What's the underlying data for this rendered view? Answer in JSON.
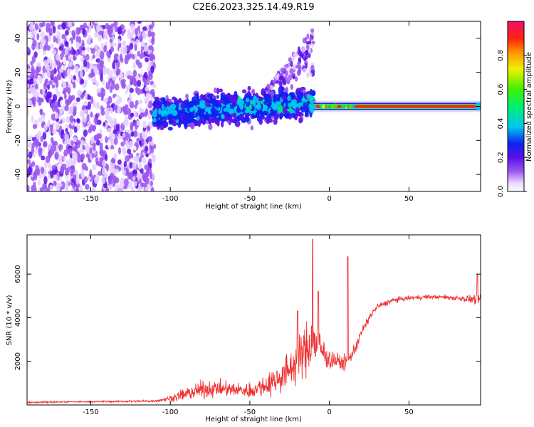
{
  "title": "C2E6.2023.325.14.49.R19",
  "chart_data": [
    {
      "type": "heatmap",
      "title": "",
      "xlabel": "Height of straight line (km)",
      "ylabel": "Frequency (Hz)",
      "xlim": [
        -190,
        95
      ],
      "ylim": [
        -50,
        50
      ],
      "xticks": [
        -150,
        -100,
        -50,
        0,
        50
      ],
      "yticks": [
        -40,
        -20,
        0,
        20,
        40
      ],
      "grid": false,
      "colorbar": {
        "label": "Normalized spectral amplitude",
        "range": [
          0.0,
          1.0
        ],
        "ticks": [
          0.0,
          0.2,
          0.4,
          0.6,
          0.8
        ],
        "tick_labels": [
          "0.0",
          "0.2",
          "0.4",
          "0.6",
          "0.8"
        ]
      },
      "features": [
        {
          "name": "noise",
          "x_range": [
            -190,
            -110
          ],
          "freq_range": [
            -50,
            50
          ],
          "amplitude": 0.1
        },
        {
          "name": "spread",
          "x_range": [
            -110,
            -10
          ],
          "freq_center": 0,
          "freq_halfwidth": 10,
          "amplitude": 0.25
        },
        {
          "name": "upper-tail",
          "x_range": [
            -40,
            -10
          ],
          "freq_range": [
            10,
            40
          ],
          "amplitude": 0.15
        },
        {
          "name": "carrier",
          "x_range": [
            -10,
            95
          ],
          "freq_center": 0,
          "amplitude": 0.95
        }
      ]
    },
    {
      "type": "line",
      "title": "",
      "xlabel": "Height of straight line (km)",
      "ylabel": "SNR (10 * v/v)",
      "xlim": [
        -190,
        95
      ],
      "ylim": [
        0,
        7800
      ],
      "xticks": [
        -150,
        -100,
        -50,
        0,
        50
      ],
      "yticks": [
        2000,
        4000,
        6000
      ],
      "grid": false,
      "series_color": "#f03030",
      "x": [
        -190,
        -150,
        -110,
        -100,
        -90,
        -80,
        -70,
        -60,
        -50,
        -40,
        -30,
        -20,
        -15,
        -10,
        -5,
        0,
        5,
        10,
        15,
        20,
        25,
        30,
        40,
        50,
        60,
        70,
        80,
        90,
        95
      ],
      "baseline": [
        120,
        150,
        180,
        300,
        500,
        700,
        750,
        700,
        650,
        900,
        1300,
        2000,
        2500,
        3000,
        2500,
        2100,
        2000,
        1900,
        2400,
        3300,
        4000,
        4500,
        4800,
        4900,
        4950,
        4950,
        4900,
        4850,
        4850
      ],
      "spread": [
        60,
        60,
        80,
        200,
        500,
        600,
        550,
        500,
        550,
        800,
        1100,
        1500,
        1800,
        2000,
        1200,
        800,
        600,
        500,
        500,
        350,
        280,
        220,
        180,
        160,
        150,
        150,
        200,
        300,
        500
      ],
      "spikes": [
        {
          "x": -10.5,
          "y": 7600
        },
        {
          "x": 11.5,
          "y": 6800
        },
        {
          "x": -20,
          "y": 4300
        },
        {
          "x": -7,
          "y": 5200
        },
        {
          "x": 93,
          "y": 6000
        }
      ]
    }
  ]
}
